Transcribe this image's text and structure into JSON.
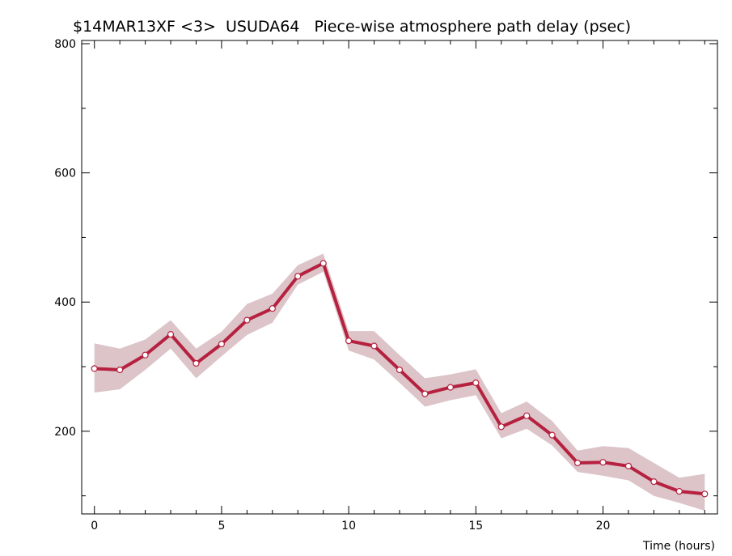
{
  "chart_data": {
    "type": "line",
    "title": "$14MAR13XF <3>  USUDA64   Piece-wise atmosphere path delay (psec)",
    "xlabel": "Time (hours)",
    "ylabel": "",
    "xlim": [
      -0.5,
      24.5
    ],
    "ylim": [
      72,
      805
    ],
    "xticks": [
      0,
      5,
      10,
      15,
      20
    ],
    "yticks": [
      200,
      400,
      600,
      800
    ],
    "x_minor_step": 1,
    "y_minor_step": 100,
    "grid": false,
    "legend": "none",
    "colors": {
      "line": "#b5213f",
      "band": "#dcc4c8",
      "marker_fill": "#ffffff"
    },
    "series": [
      {
        "x": [
          0,
          1,
          2,
          3,
          4,
          5,
          6,
          7,
          8,
          9,
          10,
          11,
          12,
          13,
          14,
          15,
          16,
          17,
          18,
          19,
          20,
          21,
          22,
          23,
          24
        ],
        "values": [
          297,
          295,
          318,
          350,
          305,
          335,
          372,
          390,
          440,
          460,
          340,
          332,
          295,
          258,
          268,
          275,
          207,
          224,
          194,
          151,
          152,
          146,
          122,
          107,
          103
        ],
        "upper": [
          336,
          328,
          342,
          372,
          328,
          354,
          397,
          413,
          457,
          475,
          355,
          355,
          318,
          282,
          288,
          296,
          228,
          246,
          216,
          170,
          177,
          174,
          151,
          128,
          134
        ],
        "lower": [
          260,
          265,
          295,
          328,
          282,
          316,
          349,
          368,
          427,
          447,
          325,
          311,
          275,
          238,
          248,
          256,
          189,
          204,
          178,
          137,
          131,
          124,
          100,
          89,
          77
        ]
      }
    ]
  }
}
